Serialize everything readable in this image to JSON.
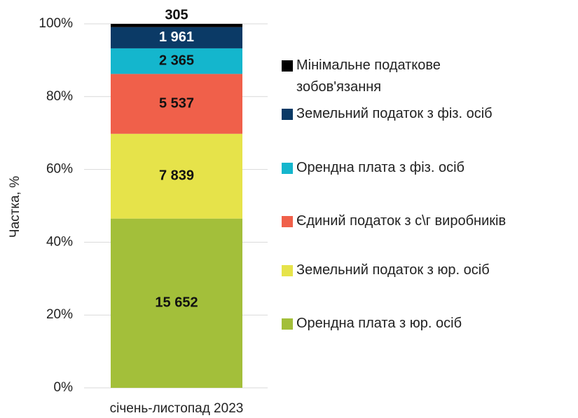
{
  "chart_data": {
    "type": "bar",
    "stacking": "percent",
    "categories": [
      "січень-листопад 2023"
    ],
    "y_label": "Частка, %",
    "ylim": [
      0,
      100
    ],
    "yticks": [
      {
        "value": 0,
        "label": "0%"
      },
      {
        "value": 20,
        "label": "20%"
      },
      {
        "value": 40,
        "label": "40%"
      },
      {
        "value": 60,
        "label": "60%"
      },
      {
        "value": 80,
        "label": "80%"
      },
      {
        "value": 100,
        "label": "100%"
      }
    ],
    "grid": true,
    "series": [
      {
        "name": "Орендна плата з юр. осіб",
        "color": "#a3bf3a",
        "values": [
          15652
        ],
        "value_labels": [
          "15 652"
        ]
      },
      {
        "name": "Земельний податок з юр. осіб",
        "color": "#e6e34a",
        "values": [
          7839
        ],
        "value_labels": [
          "7 839"
        ]
      },
      {
        "name": "Єдиний податок з с\\г виробників",
        "color": "#f0604a",
        "values": [
          5537
        ],
        "value_labels": [
          "5 537"
        ]
      },
      {
        "name": "Орендна плата з фіз. осіб",
        "color": "#14b6cd",
        "values": [
          2365
        ],
        "value_labels": [
          "2 365"
        ]
      },
      {
        "name": "Земельний податок з фіз. осіб",
        "color": "#0b3a66",
        "values": [
          1961
        ],
        "value_labels": [
          "1 961"
        ]
      },
      {
        "name": "Мінімальне податкове зобов'язання",
        "color": "#000000",
        "values": [
          305
        ],
        "value_labels": [
          "305"
        ]
      }
    ]
  }
}
